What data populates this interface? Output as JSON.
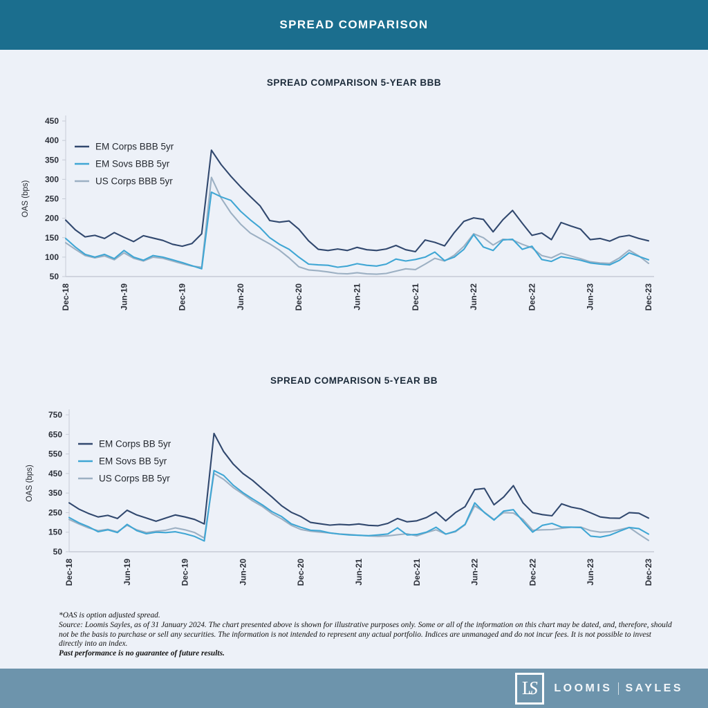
{
  "header": {
    "title": "SPREAD COMPARISON"
  },
  "palette": {
    "header_bg": "#1b6e8e",
    "footer_bg": "#6d94ac",
    "page_bg": "#edf1f8",
    "axis": "#c6cbd6",
    "navy": "#31486e",
    "blue": "#3fa6d4",
    "gray": "#9cb0c3"
  },
  "chart_data": [
    {
      "type": "line",
      "title": "SPREAD COMPARISON 5-YEAR BBB",
      "ylabel": "OAS (bps)",
      "ylim": [
        50,
        450
      ],
      "yticks": [
        50,
        100,
        150,
        200,
        250,
        300,
        350,
        400,
        450
      ],
      "x_frequency": "monthly",
      "x_start": "Dec-18",
      "x_end": "Dec-23",
      "x_tick_labels": [
        "Dec-18",
        "Jun-19",
        "Dec-19",
        "Jun-20",
        "Dec-20",
        "Jun-21",
        "Dec-21",
        "Jun-22",
        "Dec-22",
        "Jun-23",
        "Dec-23"
      ],
      "grid": false,
      "legend_position": "upper-left",
      "series": [
        {
          "name": "EM Corps BBB 5yr",
          "color": "#31486e",
          "values": [
            195,
            170,
            152,
            156,
            148,
            163,
            151,
            140,
            155,
            149,
            143,
            133,
            128,
            135,
            160,
            375,
            338,
            308,
            281,
            256,
            232,
            194,
            190,
            193,
            172,
            142,
            120,
            117,
            121,
            117,
            125,
            119,
            117,
            121,
            130,
            119,
            114,
            144,
            138,
            129,
            163,
            192,
            201,
            197,
            165,
            196,
            220,
            187,
            156,
            162,
            145,
            189,
            180,
            172,
            145,
            148,
            141,
            152,
            156,
            148,
            142
          ]
        },
        {
          "name": "EM Sovs BBB 5yr",
          "color": "#3fa6d4",
          "values": [
            148,
            126,
            107,
            100,
            107,
            96,
            117,
            100,
            92,
            104,
            100,
            93,
            86,
            78,
            70,
            267,
            255,
            246,
            218,
            196,
            176,
            150,
            133,
            120,
            100,
            82,
            80,
            79,
            74,
            77,
            83,
            79,
            77,
            82,
            95,
            90,
            94,
            100,
            113,
            91,
            100,
            120,
            158,
            126,
            117,
            144,
            146,
            120,
            128,
            94,
            89,
            101,
            97,
            92,
            85,
            82,
            80,
            92,
            111,
            102,
            93
          ]
        },
        {
          "name": "US Corps BBB 5yr",
          "color": "#9cb0c3",
          "values": [
            137,
            120,
            104,
            98,
            103,
            93,
            111,
            97,
            90,
            100,
            97,
            90,
            83,
            77,
            74,
            305,
            252,
            214,
            185,
            162,
            148,
            134,
            118,
            98,
            75,
            67,
            65,
            62,
            58,
            57,
            60,
            57,
            56,
            58,
            64,
            70,
            68,
            82,
            97,
            90,
            105,
            128,
            160,
            150,
            131,
            146,
            144,
            133,
            124,
            104,
            98,
            110,
            103,
            96,
            88,
            85,
            84,
            98,
            118,
            103,
            84
          ]
        }
      ]
    },
    {
      "type": "line",
      "title": "SPREAD COMPARISON 5-YEAR BB",
      "ylabel": "OAS (bps)",
      "ylim": [
        50,
        750
      ],
      "yticks": [
        50,
        150,
        250,
        350,
        450,
        550,
        650,
        750
      ],
      "x_frequency": "monthly",
      "x_start": "Dec-18",
      "x_end": "Dec-23",
      "x_tick_labels": [
        "Dec-18",
        "Jun-19",
        "Dec-19",
        "Jun-20",
        "Dec-20",
        "Jun-21",
        "Dec-21",
        "Jun-22",
        "Dec-22",
        "Jun-23",
        "Dec-23"
      ],
      "grid": false,
      "legend_position": "upper-left",
      "series": [
        {
          "name": "EM Corps BB 5yr",
          "color": "#31486e",
          "values": [
            300,
            268,
            246,
            228,
            236,
            220,
            262,
            238,
            222,
            206,
            222,
            238,
            228,
            215,
            192,
            655,
            562,
            498,
            450,
            415,
            372,
            330,
            285,
            252,
            230,
            200,
            193,
            186,
            190,
            187,
            192,
            185,
            183,
            195,
            220,
            203,
            208,
            225,
            253,
            208,
            250,
            280,
            368,
            374,
            290,
            330,
            388,
            300,
            250,
            240,
            234,
            295,
            278,
            269,
            249,
            228,
            222,
            221,
            250,
            247,
            222
          ]
        },
        {
          "name": "EM Sovs BB 5yr",
          "color": "#3fa6d4",
          "values": [
            225,
            198,
            178,
            152,
            162,
            148,
            190,
            158,
            142,
            150,
            148,
            152,
            142,
            128,
            105,
            465,
            440,
            390,
            352,
            320,
            290,
            255,
            230,
            193,
            175,
            160,
            157,
            146,
            140,
            136,
            134,
            132,
            136,
            141,
            172,
            136,
            138,
            150,
            175,
            140,
            155,
            190,
            300,
            250,
            212,
            258,
            265,
            205,
            150,
            185,
            195,
            176,
            176,
            174,
            130,
            125,
            135,
            155,
            174,
            168,
            140
          ]
        },
        {
          "name": "US Corps BB 5yr",
          "color": "#9cb0c3",
          "values": [
            215,
            192,
            172,
            158,
            165,
            152,
            185,
            162,
            148,
            155,
            160,
            172,
            162,
            148,
            120,
            450,
            420,
            378,
            345,
            310,
            282,
            245,
            218,
            185,
            164,
            155,
            150,
            146,
            141,
            138,
            134,
            131,
            129,
            131,
            137,
            142,
            131,
            148,
            162,
            140,
            152,
            188,
            285,
            252,
            215,
            250,
            248,
            215,
            160,
            162,
            163,
            170,
            175,
            176,
            158,
            150,
            152,
            163,
            174,
            140,
            108
          ]
        }
      ]
    }
  ],
  "footnote": {
    "line1": "*OAS is option adjusted spread.",
    "line2": "Source: Loomis Sayles, as of 31 January 2024. The chart presented above is shown for illustrative purposes only. Some or all of the information on this chart may be dated, and, therefore, should not be the basis to purchase or sell any securities. The information is not intended to represent any actual portfolio. Indices are unmanaged and do not incur fees. It is not possible to invest directly into an index.",
    "line3": "Past performance is no guarantee of future results."
  },
  "footer": {
    "monogram_l": "L",
    "monogram_s": "S",
    "brand_left": "LOOMIS",
    "brand_right": "SAYLES"
  }
}
